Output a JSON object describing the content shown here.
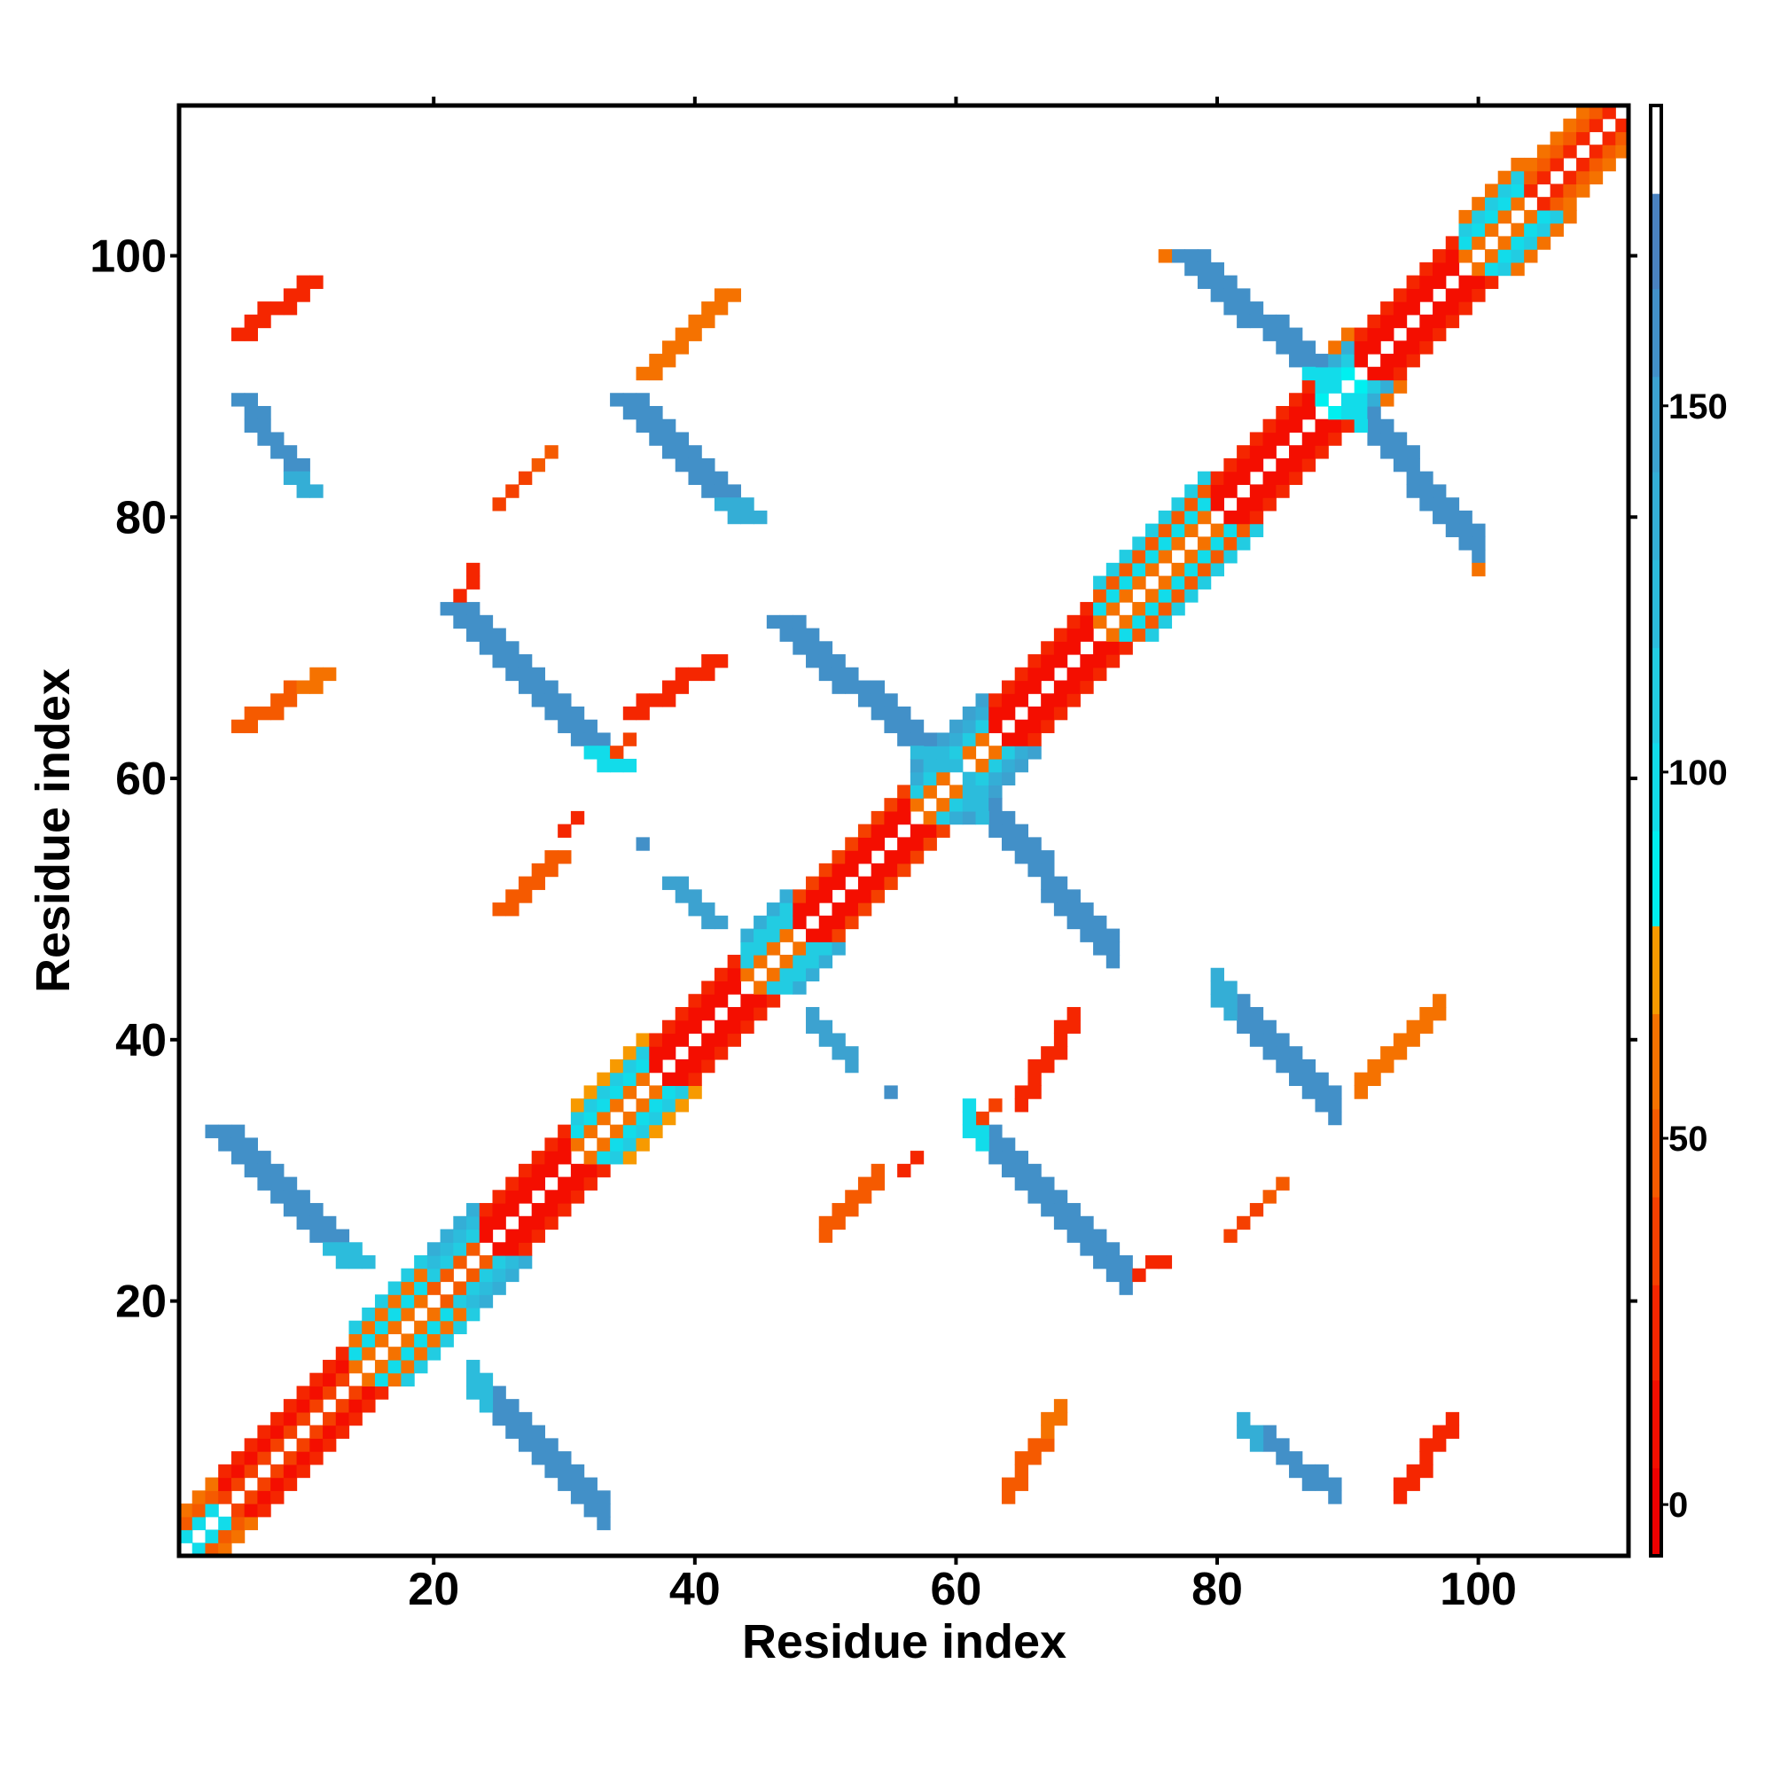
{
  "chart_data": {
    "type": "heatmap",
    "title": "",
    "xlabel": "Residue index",
    "ylabel": "Residue index",
    "xlim": [
      0.5,
      111.5
    ],
    "ylim": [
      0.5,
      111.5
    ],
    "n_residues": 111,
    "symmetric": true,
    "xticks": [
      20,
      40,
      60,
      80,
      100
    ],
    "yticks": [
      20,
      40,
      60,
      80,
      100
    ],
    "xtick_labels": [
      "20",
      "40",
      "60",
      "80",
      "100"
    ],
    "ytick_labels": [
      "20",
      "40",
      "60",
      "80",
      "100"
    ],
    "colorbar": {
      "range": [
        -7,
        191
      ],
      "ticks": [
        0,
        50,
        100,
        150
      ],
      "tick_labels": [
        "0",
        "50",
        "100",
        "150"
      ],
      "levels": [
        {
          "min": -7,
          "max": 5,
          "color": "#ee0000"
        },
        {
          "min": 5,
          "max": 17,
          "color": "#f40e00"
        },
        {
          "min": 17,
          "max": 30,
          "color": "#f52600"
        },
        {
          "min": 30,
          "max": 42,
          "color": "#f54000"
        },
        {
          "min": 42,
          "max": 54,
          "color": "#f55a00"
        },
        {
          "min": 54,
          "max": 67,
          "color": "#f57200"
        },
        {
          "min": 67,
          "max": 79,
          "color": "#f79a00"
        },
        {
          "min": 79,
          "max": 92,
          "color": "#00f0f0"
        },
        {
          "min": 92,
          "max": 104,
          "color": "#12dcea"
        },
        {
          "min": 104,
          "max": 117,
          "color": "#22cce2"
        },
        {
          "min": 117,
          "max": 129,
          "color": "#2cbcdc"
        },
        {
          "min": 129,
          "max": 141,
          "color": "#34aed6"
        },
        {
          "min": 141,
          "max": 154,
          "color": "#3ca2d0"
        },
        {
          "min": 154,
          "max": 166,
          "color": "#4290c8"
        },
        {
          "min": 166,
          "max": 179,
          "color": "#4a82c0"
        },
        {
          "min": 179,
          "max": 191,
          "color": "#ffffff"
        }
      ]
    },
    "diagonal_segments": [
      {
        "from": 1,
        "to": 4,
        "offsets": [
          100,
          45,
          65,
          null
        ]
      },
      {
        "from": 4,
        "to": 14,
        "offsets": [
          40,
          10,
          28,
          null
        ]
      },
      {
        "from": 14,
        "to": 20,
        "offsets": [
          58,
          100,
          60,
          105
        ]
      },
      {
        "from": 20,
        "to": 24,
        "offsets": [
          45,
          110,
          120,
          140
        ]
      },
      {
        "from": 24,
        "to": 31,
        "offsets": [
          10,
          15,
          25,
          null
        ]
      },
      {
        "from": 31,
        "to": 37,
        "offsets": [
          58,
          100,
          110,
          70
        ]
      },
      {
        "from": 37,
        "to": 44,
        "offsets": [
          10,
          15,
          25,
          null
        ]
      },
      {
        "from": 44,
        "to": 48,
        "offsets": [
          60,
          110,
          115,
          140
        ]
      },
      {
        "from": 48,
        "to": 57,
        "offsets": [
          10,
          15,
          32,
          null
        ]
      },
      {
        "from": 57,
        "to": 63,
        "offsets": [
          60,
          110,
          140,
          150
        ]
      },
      {
        "from": 63,
        "to": 71,
        "offsets": [
          10,
          12,
          25,
          null
        ]
      },
      {
        "from": 71,
        "to": 80,
        "offsets": [
          58,
          100,
          45,
          110
        ]
      },
      {
        "from": 80,
        "to": 88,
        "offsets": [
          10,
          12,
          20,
          null
        ]
      },
      {
        "from": 88,
        "to": 91,
        "offsets": [
          90,
          110,
          140,
          60
        ]
      },
      {
        "from": 91,
        "to": 99,
        "offsets": [
          10,
          15,
          25,
          null
        ]
      },
      {
        "from": 99,
        "to": 104,
        "offsets": [
          58,
          100,
          110,
          60
        ]
      },
      {
        "from": 104,
        "to": 111,
        "offsets": [
          22,
          48,
          62,
          null
        ]
      }
    ],
    "contacts": [
      {
        "from": [
          3,
          33
        ],
        "to": [
          13,
          23
        ],
        "width": 3,
        "value": 160,
        "end_value": 120
      },
      {
        "from": [
          5,
          89
        ],
        "to": [
          10,
          82
        ],
        "width": 2,
        "value": 160,
        "end_value": 140
      },
      {
        "from": [
          21,
          73
        ],
        "to": [
          33,
          61
        ],
        "width": 3,
        "value": 165,
        "end_value": 100
      },
      {
        "from": [
          34,
          89
        ],
        "to": [
          43,
          80
        ],
        "width": 3,
        "value": 160,
        "end_value": 130
      },
      {
        "from": [
          46,
          72
        ],
        "to": [
          58,
          61
        ],
        "width": 3,
        "value": 160,
        "end_value": 120
      },
      {
        "from": [
          77,
          100
        ],
        "to": [
          88,
          90
        ],
        "width": 3,
        "value": 160,
        "end_value": 100
      },
      {
        "from": [
          5,
          94
        ],
        "to": [
          10,
          98
        ],
        "width": 2,
        "value": 20,
        "end_value": 20
      },
      {
        "from": [
          36,
          91
        ],
        "to": [
          42,
          97
        ],
        "width": 2,
        "value": 55,
        "end_value": 60
      },
      {
        "from": [
          25,
          81
        ],
        "to": [
          29,
          85
        ],
        "width": 1,
        "value": 30,
        "end_value": 50
      },
      {
        "from": [
          5,
          64
        ],
        "to": [
          11,
          68
        ],
        "width": 2,
        "value": 50,
        "end_value": 55
      },
      {
        "from": [
          35,
          65
        ],
        "to": [
          41,
          69
        ],
        "width": 2,
        "value": 20,
        "end_value": 20
      },
      {
        "from": [
          25,
          50
        ],
        "to": [
          29,
          54
        ],
        "width": 2,
        "value": 50,
        "end_value": 50
      },
      {
        "from": [
          30,
          56
        ],
        "to": [
          31,
          57
        ],
        "width": 1,
        "value": 20,
        "end_value": 90
      },
      {
        "from": [
          38,
          52
        ],
        "to": [
          41,
          49
        ],
        "width": 2,
        "value": 150,
        "end_value": 150
      },
      {
        "from": [
          36,
          55
        ],
        "to": [
          36,
          55
        ],
        "width": 1,
        "value": 160,
        "end_value": 160
      },
      {
        "from": [
          22,
          74
        ],
        "to": [
          23,
          76
        ],
        "width": 1,
        "value": 20,
        "end_value": 70
      },
      {
        "from": [
          34,
          62
        ],
        "to": [
          35,
          63
        ],
        "width": 1,
        "value": 30,
        "end_value": 20
      },
      {
        "from": [
          76,
          100
        ],
        "to": [
          76,
          100
        ],
        "width": 1,
        "value": 60,
        "end_value": 60
      }
    ]
  }
}
